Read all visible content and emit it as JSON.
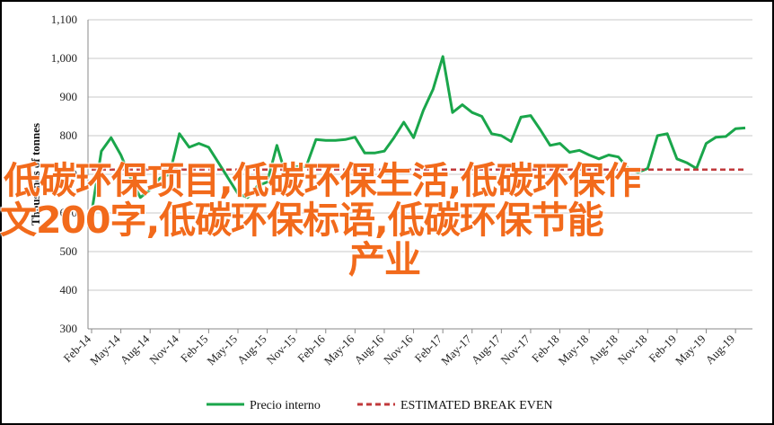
{
  "chart_data": {
    "type": "line",
    "ylabel": "Thousands of tonnes",
    "ylim": [
      300,
      1100
    ],
    "yticks": [
      300,
      400,
      500,
      600,
      700,
      800,
      900,
      1000,
      1100
    ],
    "ytick_labels": [
      "300",
      "400",
      "500",
      "600",
      "700",
      "800",
      "900",
      "1,000",
      "1,100"
    ],
    "xtick_labels": [
      "Feb-14",
      "May-14",
      "Aug-14",
      "Nov-14",
      "Feb-15",
      "May-15",
      "Aug-15",
      "Nov-15",
      "Feb-16",
      "May-16",
      "Aug-16",
      "Nov-16",
      "Feb-17",
      "May-17",
      "Aug-17",
      "Nov-17",
      "Feb-18",
      "May-18",
      "Aug-18",
      "Nov-18",
      "Feb-19",
      "May-19",
      "Aug-19"
    ],
    "grid": true,
    "legend_position": "bottom",
    "series": [
      {
        "name": "Precio interno",
        "color": "#1aa64b",
        "style": "solid",
        "x": [
          "Feb-14",
          "Mar-14",
          "Apr-14",
          "May-14",
          "Jun-14",
          "Jul-14",
          "Aug-14",
          "Sep-14",
          "Oct-14",
          "Nov-14",
          "Dec-14",
          "Jan-15",
          "Feb-15",
          "Mar-15",
          "Apr-15",
          "May-15",
          "Jun-15",
          "Jul-15",
          "Aug-15",
          "Sep-15",
          "Oct-15",
          "Nov-15",
          "Dec-15",
          "Jan-16",
          "Feb-16",
          "Mar-16",
          "Apr-16",
          "May-16",
          "Jun-16",
          "Jul-16",
          "Aug-16",
          "Sep-16",
          "Oct-16",
          "Nov-16",
          "Dec-16",
          "Jan-17",
          "Feb-17",
          "Mar-17",
          "Apr-17",
          "May-17",
          "Jun-17",
          "Jul-17",
          "Aug-17",
          "Sep-17",
          "Oct-17",
          "Nov-17",
          "Dec-17",
          "Jan-18",
          "Feb-18",
          "Mar-18",
          "Apr-18",
          "May-18",
          "Jun-18",
          "Jul-18",
          "Aug-18",
          "Sep-18",
          "Oct-18",
          "Nov-18",
          "Dec-18",
          "Jan-19",
          "Feb-19",
          "Mar-19",
          "Apr-19",
          "May-19",
          "Jun-19",
          "Jul-19",
          "Aug-19",
          "Sep-19"
        ],
        "values": [
          600,
          760,
          795,
          750,
          690,
          640,
          660,
          690,
          700,
          805,
          770,
          780,
          770,
          730,
          690,
          650,
          640,
          670,
          680,
          775,
          690,
          720,
          720,
          790,
          788,
          788,
          790,
          796,
          755,
          755,
          760,
          795,
          835,
          795,
          865,
          920,
          1005,
          860,
          880,
          860,
          850,
          805,
          800,
          785,
          848,
          852,
          815,
          775,
          780,
          757,
          762,
          750,
          740,
          750,
          745,
          715,
          705,
          715,
          800,
          805,
          740,
          730,
          715,
          780,
          796,
          798,
          818,
          820
        ]
      },
      {
        "name": "ESTIMATED BREAK EVEN",
        "color": "#c0393b",
        "style": "dashed",
        "x": [
          "Feb-14",
          "Sep-19"
        ],
        "values": [
          712,
          712
        ]
      }
    ]
  },
  "overlay": {
    "line1": "低碳环保项目,低碳环保生活,低碳环保作",
    "line2": "文200字,低碳环保标语,低碳环保节能",
    "line3": "产业"
  }
}
